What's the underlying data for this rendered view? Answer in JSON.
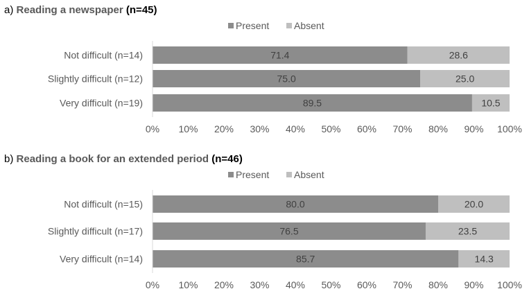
{
  "colors": {
    "present": "#8c8c8c",
    "absent": "#bfbfbf",
    "axis": "#d9d9d9"
  },
  "legend": [
    "Present",
    "Absent"
  ],
  "chart_data": [
    {
      "type": "bar",
      "orientation": "horizontal",
      "stacked": true,
      "title_prefix": "a) ",
      "title": "Reading a newspaper",
      "title_n": "(n=45)",
      "categories": [
        "Not difficult (n=14)",
        "Slightly difficult (n=12)",
        "Very difficult (n=19)"
      ],
      "series": [
        {
          "name": "Present",
          "values": [
            71.4,
            75.0,
            89.5
          ],
          "labels": [
            "71.4",
            "75.0",
            "89.5"
          ]
        },
        {
          "name": "Absent",
          "values": [
            28.6,
            25.0,
            10.5
          ],
          "labels": [
            "28.6",
            "25.0",
            "10.5"
          ]
        }
      ],
      "xlim": [
        0,
        100
      ],
      "xticks": [
        "0%",
        "10%",
        "20%",
        "30%",
        "40%",
        "50%",
        "60%",
        "70%",
        "80%",
        "90%",
        "100%"
      ],
      "legend_position": "top",
      "grid": false
    },
    {
      "type": "bar",
      "orientation": "horizontal",
      "stacked": true,
      "title_prefix": "b) ",
      "title": "Reading a book for an extended period",
      "title_n": "(n=46)",
      "categories": [
        "Not difficult (n=15)",
        "Slightly difficult (n=17)",
        "Very difficult (n=14)"
      ],
      "series": [
        {
          "name": "Present",
          "values": [
            80.0,
            76.5,
            85.7
          ],
          "labels": [
            "80.0",
            "76.5",
            "85.7"
          ]
        },
        {
          "name": "Absent",
          "values": [
            20.0,
            23.5,
            14.3
          ],
          "labels": [
            "20.0",
            "23.5",
            "14.3"
          ]
        }
      ],
      "xlim": [
        0,
        100
      ],
      "xticks": [
        "0%",
        "10%",
        "20%",
        "30%",
        "40%",
        "50%",
        "60%",
        "70%",
        "80%",
        "90%",
        "100%"
      ],
      "legend_position": "top",
      "grid": false
    }
  ]
}
